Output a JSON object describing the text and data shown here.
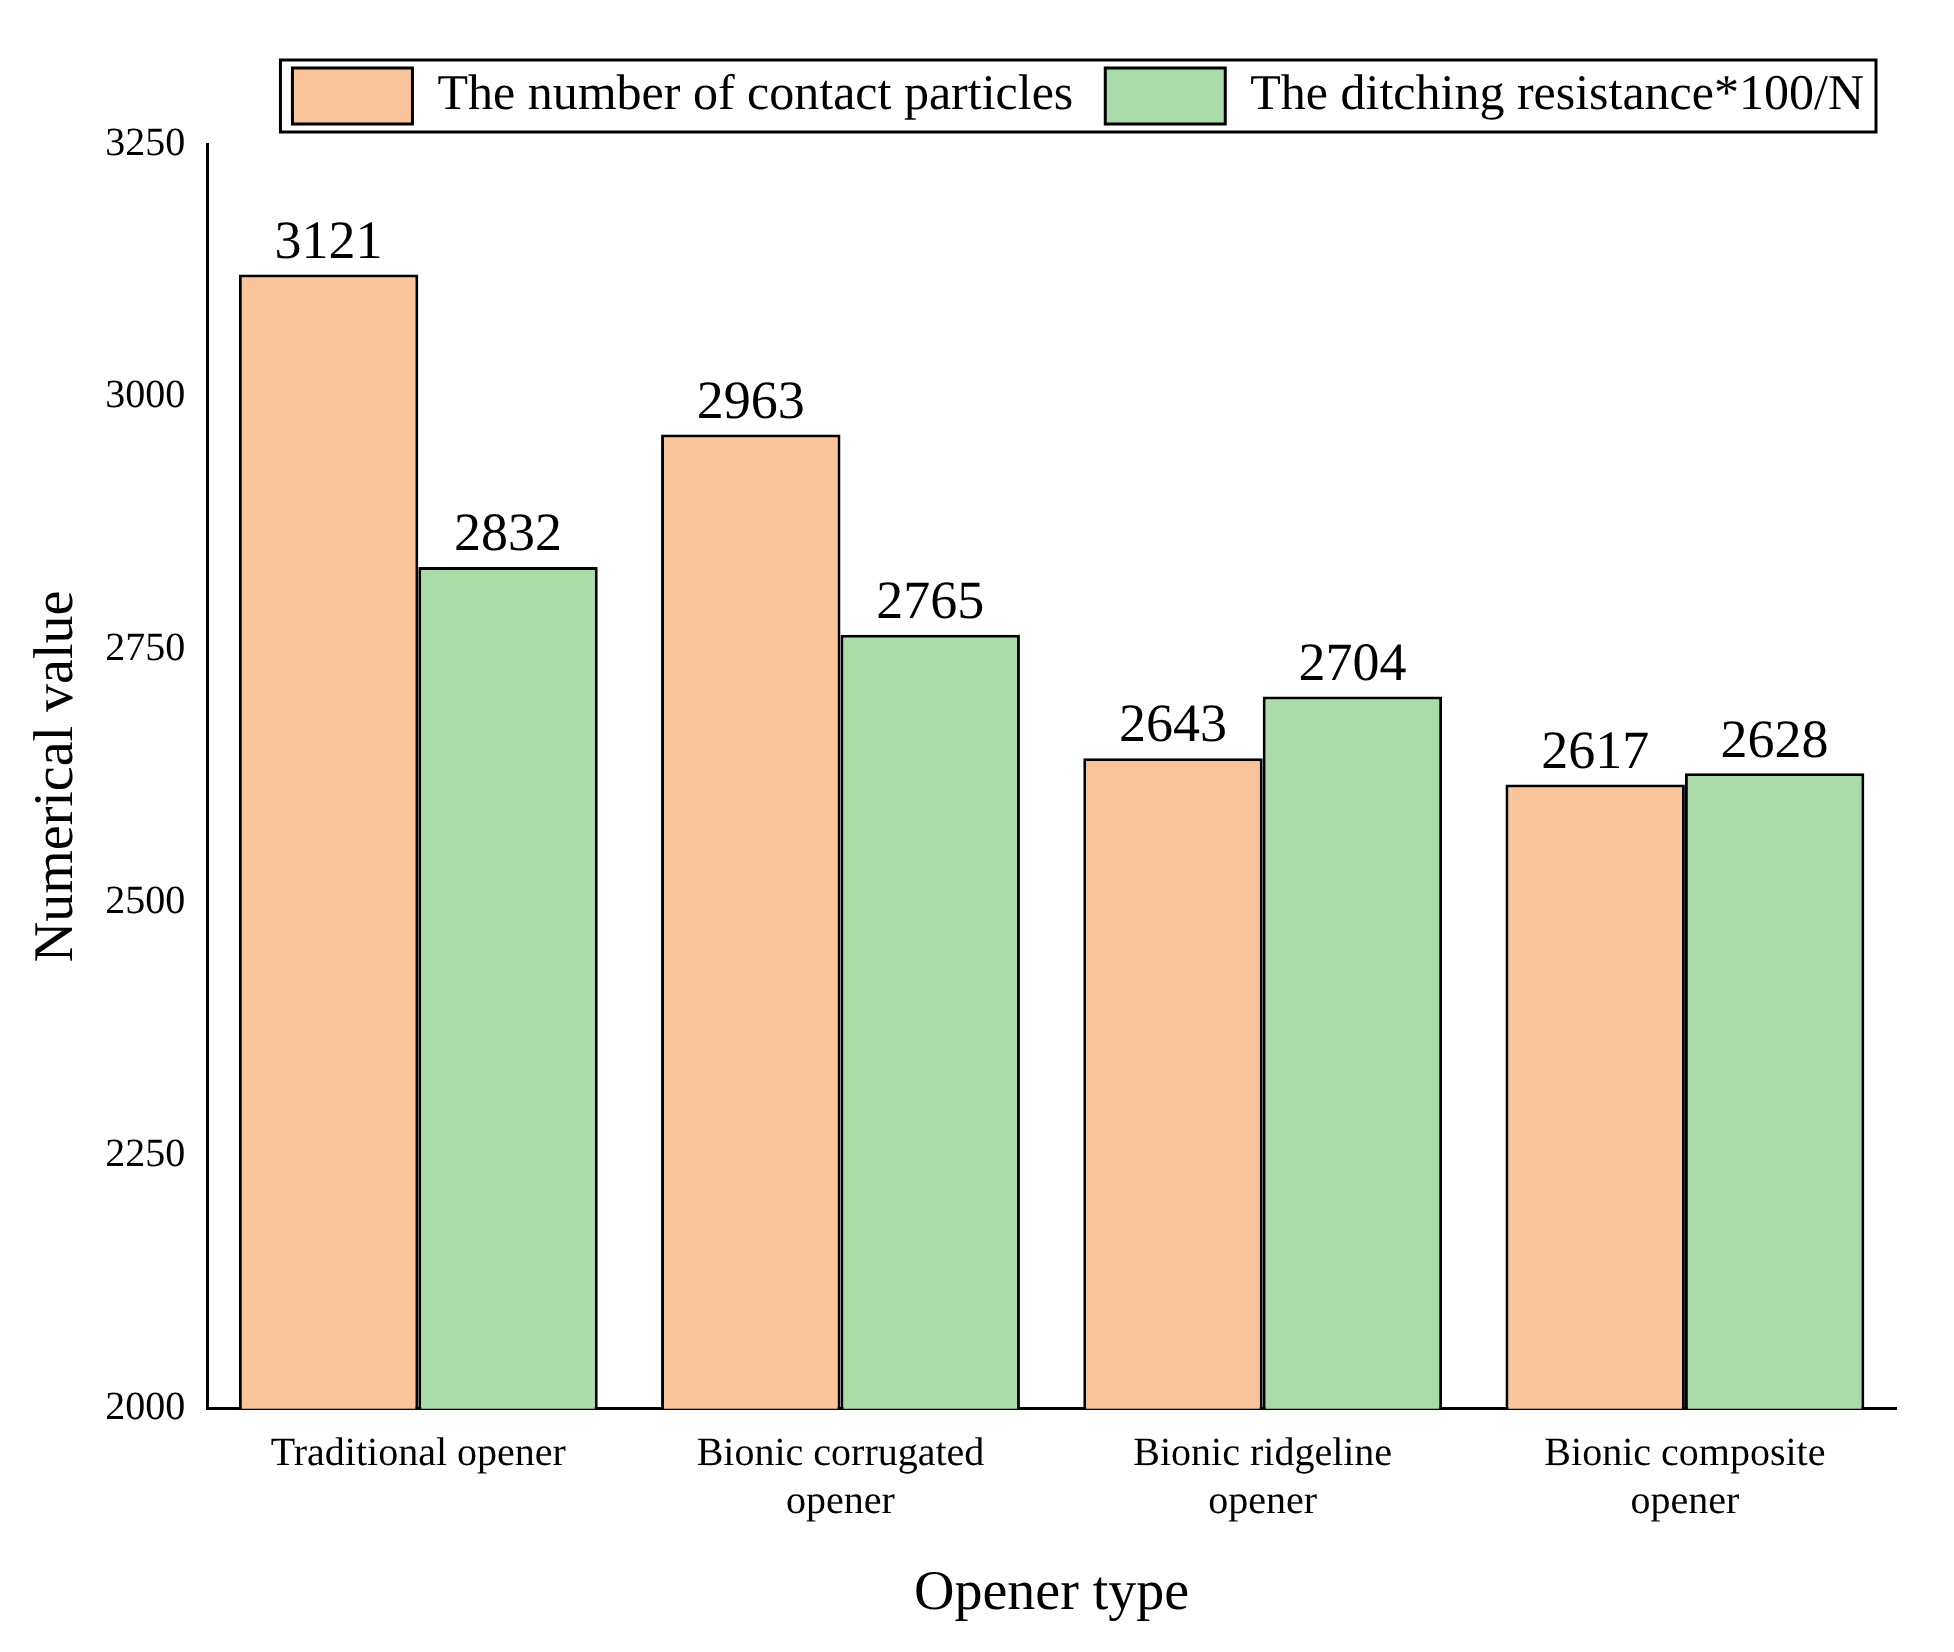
{
  "chart_data": {
    "type": "bar",
    "xlabel": "Opener type",
    "ylabel": "Numerical value",
    "categories": [
      "Traditional opener",
      "Bionic corrugated opener",
      "Bionic ridgeline opener",
      "Bionic composite opener"
    ],
    "series": [
      {
        "name": "The number of contact particles",
        "color": "#f9c49a",
        "values": [
          3121,
          2963,
          2643,
          2617
        ]
      },
      {
        "name": "The ditching resistance*100/N",
        "color": "#a9dca9",
        "values": [
          2832,
          2765,
          2704,
          2628
        ]
      }
    ],
    "ylim": [
      2000,
      3250
    ],
    "yticks": [
      2000,
      2250,
      2500,
      2750,
      3000,
      3250
    ],
    "data_labels": true,
    "legend": "top right",
    "grid": false
  }
}
